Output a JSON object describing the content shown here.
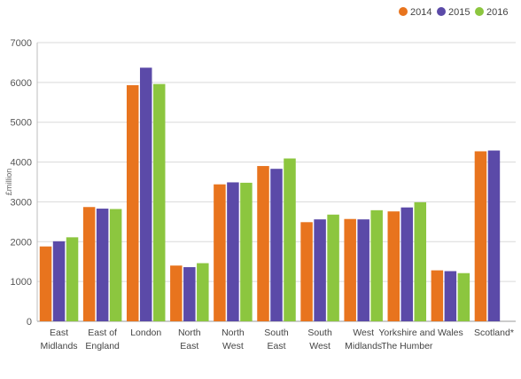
{
  "chart_data": {
    "type": "bar",
    "title": "",
    "xlabel": "",
    "ylabel": "£million",
    "ylim": [
      0,
      7000
    ],
    "yticks": [
      0,
      1000,
      2000,
      3000,
      4000,
      5000,
      6000,
      7000
    ],
    "grid": true,
    "legend_position": "top-right",
    "categories": [
      [
        "East",
        "Midlands"
      ],
      [
        "East of",
        "England"
      ],
      [
        "London"
      ],
      [
        "North",
        "East"
      ],
      [
        "North",
        "West"
      ],
      [
        "South",
        "East"
      ],
      [
        "South",
        "West"
      ],
      [
        "West",
        "Midlands"
      ],
      [
        "Yorkshire and",
        "The Humber"
      ],
      [
        "Wales"
      ],
      [
        "Scotland*"
      ]
    ],
    "series": [
      {
        "name": "2014",
        "color": "#e8741e",
        "values": [
          1880,
          2870,
          5930,
          1400,
          3440,
          3900,
          2490,
          2570,
          2760,
          1280,
          4270
        ]
      },
      {
        "name": "2015",
        "color": "#5b4aa8",
        "values": [
          2010,
          2830,
          6370,
          1360,
          3490,
          3830,
          2560,
          2560,
          2860,
          1260,
          4290
        ]
      },
      {
        "name": "2016",
        "color": "#8cc63f",
        "values": [
          2110,
          2820,
          5960,
          1460,
          3480,
          4090,
          2680,
          2790,
          2990,
          1210,
          null
        ]
      }
    ]
  }
}
